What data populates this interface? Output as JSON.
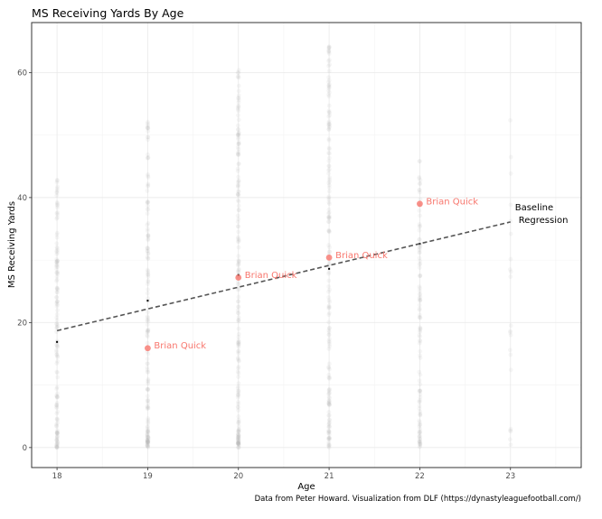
{
  "chart_data": {
    "type": "scatter",
    "title": "MS Receiving Yards By Age",
    "xlabel": "Age",
    "ylabel": "MS Receiving Yards",
    "xlim": [
      17.72,
      23.78
    ],
    "ylim": [
      -3.2,
      68.0
    ],
    "x_ticks": [
      18,
      19,
      20,
      21,
      22,
      23
    ],
    "y_ticks": [
      0,
      20,
      40,
      60
    ],
    "grid": true,
    "caption": "Data from Peter Howard. Visualization from DLF (https://dynastyleaguefootball.com/)",
    "highlight_series": {
      "name": "Brian Quick",
      "color": "#f8766d",
      "points": [
        {
          "x": 19,
          "y": 15.9,
          "label": "Brian Quick"
        },
        {
          "x": 20,
          "y": 27.2,
          "label": "Brian Quick"
        },
        {
          "x": 21,
          "y": 30.4,
          "label": "Brian Quick"
        },
        {
          "x": 22,
          "y": 39.0,
          "label": "Brian Quick"
        }
      ]
    },
    "baseline": {
      "name": "Baseline Regression",
      "label_line1": "Baseline",
      "label_line2": "Regression",
      "x": [
        18,
        23
      ],
      "y": [
        18.7,
        36.1
      ],
      "style": "dashed",
      "color": "#555555"
    },
    "mean_markers": [
      {
        "x": 18,
        "y": 16.9
      },
      {
        "x": 19,
        "y": 23.5
      },
      {
        "x": 20,
        "y": 27.6
      },
      {
        "x": 21,
        "y": 28.6
      },
      {
        "x": 22,
        "y": 32.6
      }
    ],
    "background_point_color": "#b8b8b8"
  }
}
